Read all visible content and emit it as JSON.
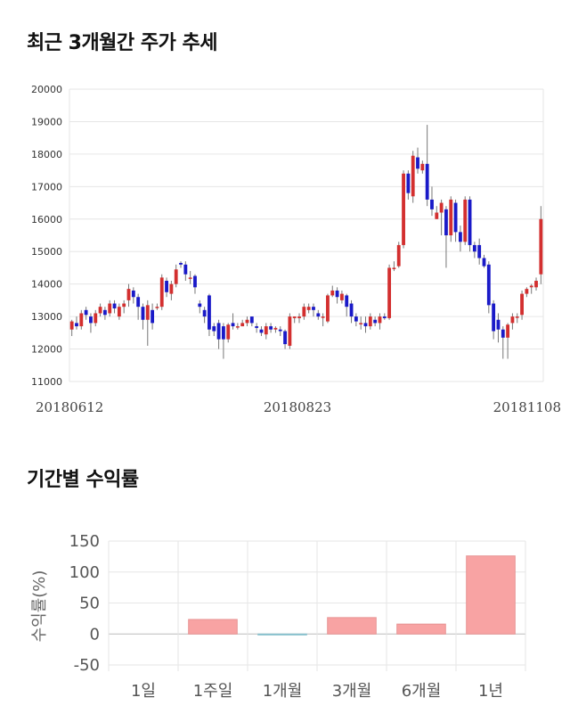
{
  "sections": {
    "price_trend_title": "최근 3개월간 주가 추세",
    "returns_title": "기간별 수익률"
  },
  "colors": {
    "up": "#d32f2f",
    "down": "#1a1ac8",
    "bar": "#f8a3a3",
    "bar_negative": "#9ed3e0",
    "grid": "#e6e6e6"
  },
  "chart_data": [
    {
      "type": "candlestick",
      "title": "최근 3개월간 주가 추세",
      "ylim": [
        11000,
        20000
      ],
      "yticks": [
        11000,
        12000,
        13000,
        14000,
        15000,
        16000,
        17000,
        18000,
        19000,
        20000
      ],
      "xtick_labels": [
        "20180612",
        "20180823",
        "20181108"
      ],
      "grid": true,
      "candles": [
        [
          12600,
          12850,
          12400,
          12900
        ],
        [
          12800,
          12700,
          12600,
          13000
        ],
        [
          12700,
          13100,
          12600,
          13200
        ],
        [
          13200,
          13050,
          12900,
          13300
        ],
        [
          13000,
          12800,
          12500,
          13100
        ],
        [
          12800,
          13100,
          12700,
          13200
        ],
        [
          13100,
          13300,
          13000,
          13400
        ],
        [
          13200,
          13050,
          12900,
          13300
        ],
        [
          13100,
          13400,
          13000,
          13500
        ],
        [
          13400,
          13250,
          13100,
          13500
        ],
        [
          13000,
          13300,
          12900,
          13400
        ],
        [
          13300,
          13400,
          13100,
          13500
        ],
        [
          13500,
          13850,
          13300,
          14000
        ],
        [
          13800,
          13600,
          13400,
          13900
        ],
        [
          13600,
          13300,
          12900,
          13700
        ],
        [
          13300,
          12900,
          12600,
          13400
        ],
        [
          12900,
          13350,
          12100,
          13500
        ],
        [
          13200,
          12800,
          12600,
          13400
        ],
        [
          13300,
          13300,
          13200,
          13400
        ],
        [
          13300,
          14200,
          13200,
          14300
        ],
        [
          14100,
          13750,
          13600,
          14200
        ],
        [
          13700,
          14000,
          13500,
          14100
        ],
        [
          14000,
          14450,
          13900,
          14600
        ],
        [
          14650,
          14600,
          14500,
          14700
        ],
        [
          14600,
          14300,
          14100,
          14700
        ],
        [
          14200,
          14200,
          14000,
          14400
        ],
        [
          14250,
          13900,
          13700,
          14300
        ],
        [
          13400,
          13300,
          13100,
          13500
        ],
        [
          13200,
          13000,
          12800,
          13300
        ],
        [
          13650,
          12600,
          12400,
          13700
        ],
        [
          12700,
          12550,
          12400,
          12800
        ],
        [
          12800,
          12300,
          12000,
          12900
        ],
        [
          12700,
          12300,
          11700,
          12800
        ],
        [
          12300,
          12750,
          12200,
          12800
        ],
        [
          12800,
          12700,
          12600,
          13100
        ],
        [
          12700,
          12700,
          12600,
          12800
        ],
        [
          12700,
          12800,
          12700,
          12900
        ],
        [
          12800,
          12900,
          12700,
          13000
        ],
        [
          13000,
          12800,
          12700,
          13000
        ],
        [
          12700,
          12650,
          12500,
          12800
        ],
        [
          12600,
          12500,
          12400,
          12700
        ],
        [
          12450,
          12700,
          12300,
          12800
        ],
        [
          12700,
          12600,
          12500,
          12800
        ],
        [
          12600,
          12650,
          12500,
          12700
        ],
        [
          12600,
          12550,
          12400,
          12700
        ],
        [
          12550,
          12150,
          12000,
          12600
        ],
        [
          12100,
          13000,
          12000,
          13100
        ],
        [
          12950,
          13000,
          12800,
          13000
        ],
        [
          12950,
          13000,
          12800,
          13100
        ],
        [
          13000,
          13300,
          12900,
          13400
        ],
        [
          13200,
          13300,
          13100,
          13400
        ],
        [
          13300,
          13200,
          13000,
          13400
        ],
        [
          13100,
          13000,
          12900,
          13200
        ],
        [
          13000,
          13000,
          12700,
          13100
        ],
        [
          12850,
          13650,
          12800,
          13700
        ],
        [
          13650,
          13800,
          13600,
          13950
        ],
        [
          13800,
          13600,
          13400,
          13900
        ],
        [
          13500,
          13700,
          13400,
          13800
        ],
        [
          13650,
          13300,
          13000,
          13700
        ],
        [
          13400,
          13000,
          12800,
          13500
        ],
        [
          13000,
          12850,
          12700,
          13100
        ],
        [
          12800,
          12800,
          12600,
          13000
        ],
        [
          12800,
          12700,
          12500,
          13000
        ],
        [
          12700,
          13000,
          12600,
          13100
        ],
        [
          12900,
          12800,
          12700,
          13000
        ],
        [
          12800,
          13000,
          12600,
          13100
        ],
        [
          13000,
          12950,
          12900,
          13100
        ],
        [
          12950,
          14500,
          12900,
          14600
        ],
        [
          14500,
          14500,
          14400,
          14700
        ],
        [
          14550,
          15200,
          14500,
          15300
        ],
        [
          15200,
          17400,
          15100,
          17500
        ],
        [
          17400,
          16800,
          16600,
          17500
        ],
        [
          16700,
          17950,
          16500,
          18100
        ],
        [
          17900,
          17550,
          17400,
          18200
        ],
        [
          17500,
          17700,
          17400,
          17800
        ],
        [
          17700,
          16600,
          16400,
          18900
        ],
        [
          16600,
          16300,
          16100,
          17000
        ],
        [
          16000,
          16200,
          16000,
          16400
        ],
        [
          16200,
          16500,
          15500,
          16600
        ],
        [
          16300,
          15500,
          14500,
          16400
        ],
        [
          15500,
          16600,
          15300,
          16700
        ],
        [
          16500,
          15600,
          15300,
          16600
        ],
        [
          15600,
          15300,
          15000,
          15800
        ],
        [
          15300,
          16600,
          15200,
          16700
        ],
        [
          16600,
          15200,
          15000,
          16700
        ],
        [
          15200,
          15000,
          14800,
          15300
        ],
        [
          15200,
          14800,
          14600,
          15400
        ],
        [
          14800,
          14550,
          14500,
          14900
        ],
        [
          14600,
          13350,
          13100,
          14700
        ],
        [
          13400,
          12550,
          12300,
          13500
        ],
        [
          12900,
          12600,
          12200,
          13100
        ],
        [
          12600,
          12350,
          11700,
          12700
        ],
        [
          12350,
          12750,
          11700,
          12800
        ],
        [
          12800,
          13000,
          12600,
          13100
        ],
        [
          13000,
          13000,
          12800,
          13100
        ],
        [
          13050,
          13700,
          12900,
          13800
        ],
        [
          13700,
          13850,
          13600,
          13900
        ],
        [
          13900,
          13950,
          13700,
          14000
        ],
        [
          13900,
          14100,
          13800,
          14200
        ],
        [
          14300,
          16000,
          14000,
          16400
        ]
      ]
    },
    {
      "type": "bar",
      "title": "기간별 수익률",
      "categories": [
        "1일",
        "1주일",
        "1개월",
        "3개월",
        "6개월",
        "1년"
      ],
      "values": [
        0,
        23.5,
        -1.5,
        26.5,
        16,
        126
      ],
      "ylabel": "수익률(%)",
      "ylim": [
        -60,
        150
      ],
      "yticks": [
        -50,
        0,
        50,
        100,
        150
      ],
      "grid": true
    }
  ]
}
